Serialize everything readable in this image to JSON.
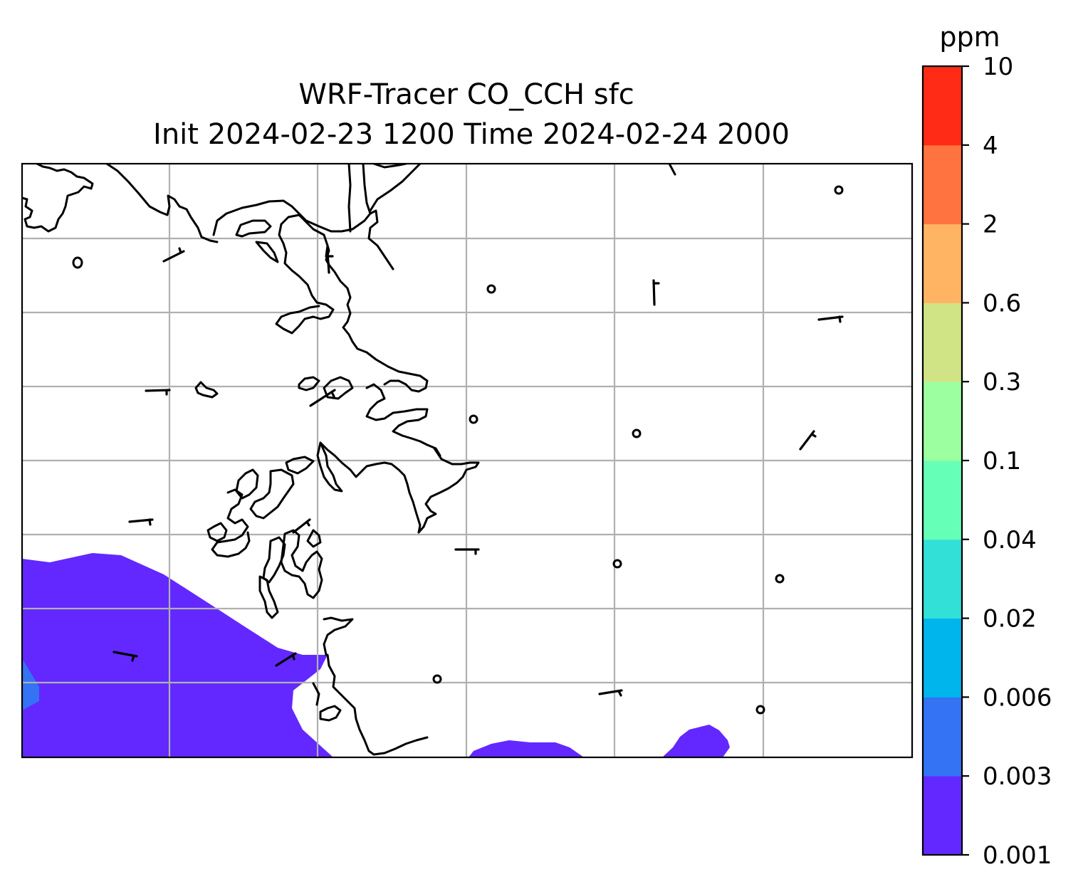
{
  "title": {
    "line1": "WRF-Tracer CO_CCH sfc",
    "line2": "Init 2024-02-23 1200 Time 2024-02-24 2000"
  },
  "colorbar": {
    "unit": "ppm",
    "levels": [
      "0.001",
      "0.003",
      "0.006",
      "0.02",
      "0.04",
      "0.1",
      "0.3",
      "0.6",
      "2",
      "4",
      "10"
    ],
    "colors": [
      "#6328ff",
      "#3373f4",
      "#00b4ec",
      "#33e0d8",
      "#66ffb8",
      "#9cffa0",
      "#d0e486",
      "#ffb463",
      "#ff7340",
      "#ff2b16"
    ]
  },
  "map": {
    "gridlines": true,
    "coastline_color": "#000000",
    "gridline_color": "#b0b0b0"
  }
}
